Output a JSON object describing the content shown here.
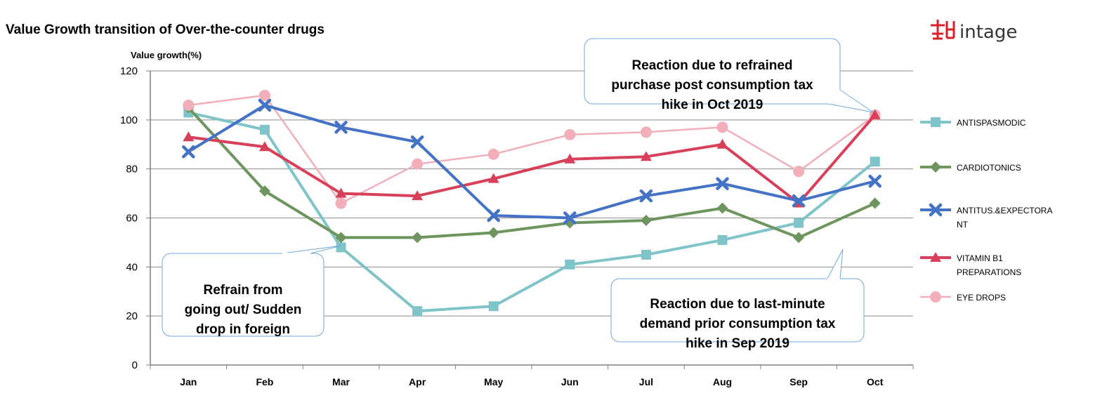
{
  "chart_data": {
    "type": "line",
    "title": "Value Growth transition of Over-the-counter drugs",
    "ylabel": "Value growth(%)",
    "xlabel": "",
    "ylim": [
      0,
      120
    ],
    "yticks": [
      0,
      20,
      40,
      60,
      80,
      100,
      120
    ],
    "categories": [
      "Jan",
      "Feb",
      "Mar",
      "Apr",
      "May",
      "Jun",
      "Jul",
      "Aug",
      "Sep",
      "Oct"
    ],
    "grid": true,
    "legend_position": "right",
    "series": [
      {
        "name": "ANTISPASMODIC",
        "legend_lines": [
          "ANTISPASMODIC"
        ],
        "color": "#7FC4C8",
        "marker": "square",
        "values": [
          103,
          96,
          48,
          22,
          24,
          41,
          45,
          51,
          58,
          83
        ]
      },
      {
        "name": "CARDIOTONICS",
        "legend_lines": [
          "CARDIOTONICS"
        ],
        "color": "#6E955E",
        "marker": "diamond",
        "values": [
          105,
          71,
          52,
          52,
          54,
          58,
          59,
          64,
          52,
          66
        ]
      },
      {
        "name": "ANTITUS.&EXPECTORANT",
        "legend_lines": [
          "ANTITUS.&EXPECTORA",
          "NT"
        ],
        "color": "#4472C4",
        "marker": "x",
        "values": [
          87,
          106,
          97,
          91,
          61,
          60,
          69,
          74,
          67,
          75
        ]
      },
      {
        "name": "VITAMIN B1 PREPARATIONS",
        "legend_lines": [
          "VITAMIN B1",
          "PREPARATIONS"
        ],
        "color": "#D8405A",
        "marker": "triangle",
        "values": [
          93,
          89,
          70,
          69,
          76,
          84,
          85,
          90,
          66,
          102
        ]
      },
      {
        "name": "EYE DROPS",
        "legend_lines": [
          "EYE DROPS"
        ],
        "color": "#F2AFBA",
        "marker": "circle",
        "values": [
          106,
          110,
          66,
          82,
          86,
          94,
          95,
          97,
          79,
          102
        ]
      }
    ],
    "annotations": [
      {
        "id": "refrain",
        "lines": [
          "Refrain from",
          "going out/ Sudden",
          "drop in foreign"
        ]
      },
      {
        "id": "reaction-oct",
        "lines": [
          "Reaction due to refrained",
          "purchase post consumption tax",
          "hike in Oct 2019"
        ]
      },
      {
        "id": "reaction-sep",
        "lines": [
          "Reaction due to last-minute",
          "demand prior consumption tax",
          "hike in Sep 2019"
        ]
      }
    ]
  },
  "logo": {
    "text": "intage",
    "color": "#D8202A"
  }
}
